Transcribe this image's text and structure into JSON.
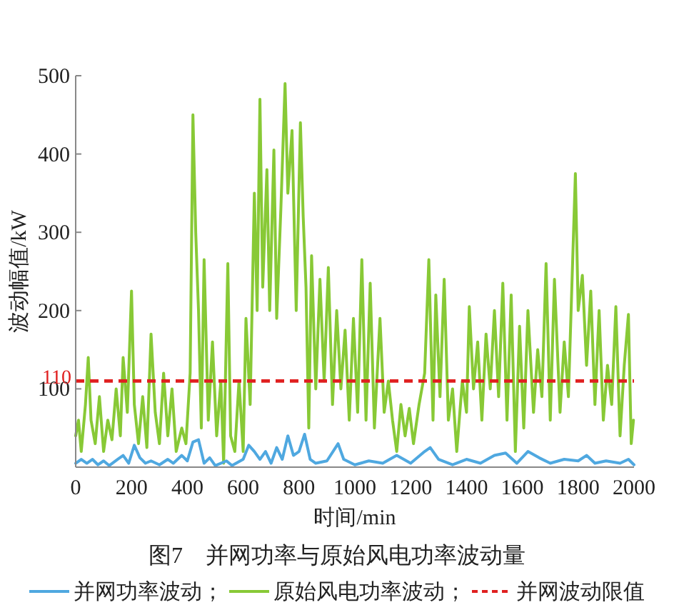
{
  "chart_data": {
    "type": "line",
    "xlabel": "时间/min",
    "ylabel": "波动幅值/kW",
    "title": "图7　并网功率与原始风电功率波动量",
    "xlim": [
      0,
      2000
    ],
    "xticks": [
      0,
      200,
      400,
      600,
      800,
      1000,
      1200,
      1400,
      1600,
      1800,
      2000
    ],
    "ylim": [
      0,
      500
    ],
    "yticks": [
      {
        "value": 0,
        "label": null
      },
      100,
      200,
      300,
      400,
      500
    ],
    "grid": false,
    "legend": "bottom",
    "line_style": "solid",
    "marker": "none",
    "annotations": [
      {
        "text": "110",
        "x": 0,
        "y": 110
      }
    ],
    "series": [
      {
        "name": "并网功率波动；",
        "color": "#4fa8e0",
        "x": [
          0,
          20,
          40,
          60,
          80,
          100,
          120,
          150,
          170,
          190,
          210,
          230,
          250,
          270,
          300,
          330,
          350,
          380,
          400,
          420,
          440,
          460,
          480,
          500,
          540,
          560,
          600,
          620,
          640,
          660,
          680,
          700,
          720,
          740,
          760,
          780,
          800,
          820,
          840,
          860,
          900,
          940,
          960,
          1000,
          1050,
          1100,
          1150,
          1200,
          1250,
          1270,
          1300,
          1350,
          1400,
          1450,
          1500,
          1540,
          1580,
          1620,
          1660,
          1700,
          1750,
          1800,
          1830,
          1860,
          1900,
          1950,
          1980,
          2000
        ],
        "values": [
          5,
          10,
          5,
          10,
          3,
          8,
          2,
          10,
          15,
          5,
          28,
          12,
          5,
          8,
          3,
          10,
          5,
          15,
          8,
          32,
          35,
          5,
          12,
          2,
          8,
          2,
          10,
          28,
          20,
          10,
          20,
          5,
          25,
          10,
          40,
          15,
          20,
          42,
          10,
          5,
          8,
          30,
          10,
          3,
          8,
          5,
          15,
          5,
          20,
          25,
          10,
          3,
          10,
          5,
          15,
          18,
          5,
          20,
          12,
          5,
          10,
          8,
          15,
          5,
          8,
          5,
          10,
          3
        ]
      },
      {
        "name": "原始风电功率波动；",
        "color": "#88c936",
        "x": [
          0,
          10,
          20,
          35,
          45,
          55,
          70,
          85,
          100,
          115,
          130,
          145,
          160,
          170,
          185,
          200,
          210,
          225,
          240,
          255,
          270,
          285,
          300,
          315,
          330,
          345,
          360,
          380,
          395,
          410,
          420,
          430,
          440,
          450,
          460,
          475,
          490,
          505,
          520,
          530,
          545,
          555,
          570,
          585,
          600,
          610,
          625,
          640,
          650,
          660,
          670,
          685,
          695,
          710,
          720,
          735,
          750,
          760,
          775,
          790,
          805,
          815,
          825,
          835,
          845,
          860,
          875,
          890,
          905,
          920,
          935,
          950,
          965,
          980,
          995,
          1010,
          1025,
          1040,
          1055,
          1070,
          1090,
          1105,
          1120,
          1135,
          1150,
          1165,
          1180,
          1195,
          1210,
          1230,
          1250,
          1265,
          1280,
          1290,
          1305,
          1320,
          1335,
          1350,
          1365,
          1385,
          1400,
          1410,
          1425,
          1440,
          1455,
          1470,
          1485,
          1500,
          1515,
          1530,
          1545,
          1560,
          1575,
          1590,
          1605,
          1620,
          1640,
          1655,
          1670,
          1685,
          1700,
          1715,
          1735,
          1750,
          1765,
          1790,
          1800,
          1815,
          1830,
          1845,
          1860,
          1875,
          1890,
          1905,
          1920,
          1935,
          1950,
          1965,
          1980,
          1990,
          1998
        ],
        "values": [
          40,
          60,
          20,
          80,
          140,
          60,
          30,
          90,
          20,
          60,
          35,
          100,
          40,
          140,
          70,
          225,
          80,
          30,
          90,
          25,
          170,
          70,
          30,
          120,
          40,
          100,
          20,
          50,
          30,
          120,
          450,
          300,
          200,
          50,
          265,
          60,
          160,
          40,
          110,
          5,
          260,
          40,
          20,
          110,
          20,
          190,
          80,
          350,
          200,
          470,
          230,
          380,
          200,
          405,
          190,
          330,
          490,
          350,
          430,
          200,
          440,
          320,
          230,
          50,
          270,
          100,
          240,
          110,
          255,
          80,
          200,
          100,
          175,
          60,
          190,
          70,
          265,
          60,
          235,
          50,
          190,
          70,
          110,
          60,
          20,
          80,
          40,
          75,
          30,
          80,
          120,
          265,
          60,
          220,
          90,
          240,
          60,
          100,
          20,
          110,
          70,
          205,
          100,
          160,
          60,
          170,
          100,
          200,
          90,
          235,
          60,
          220,
          20,
          180,
          50,
          200,
          70,
          150,
          90,
          260,
          60,
          240,
          70,
          160,
          90,
          375,
          200,
          245,
          130,
          225,
          80,
          200,
          60,
          130,
          80,
          205,
          40,
          130,
          195,
          30,
          60
        ]
      },
      {
        "name": "并网波动限值",
        "color": "#e02020",
        "line_style": "dashed",
        "x": [
          0,
          2000
        ],
        "values": [
          110,
          110
        ]
      }
    ]
  }
}
